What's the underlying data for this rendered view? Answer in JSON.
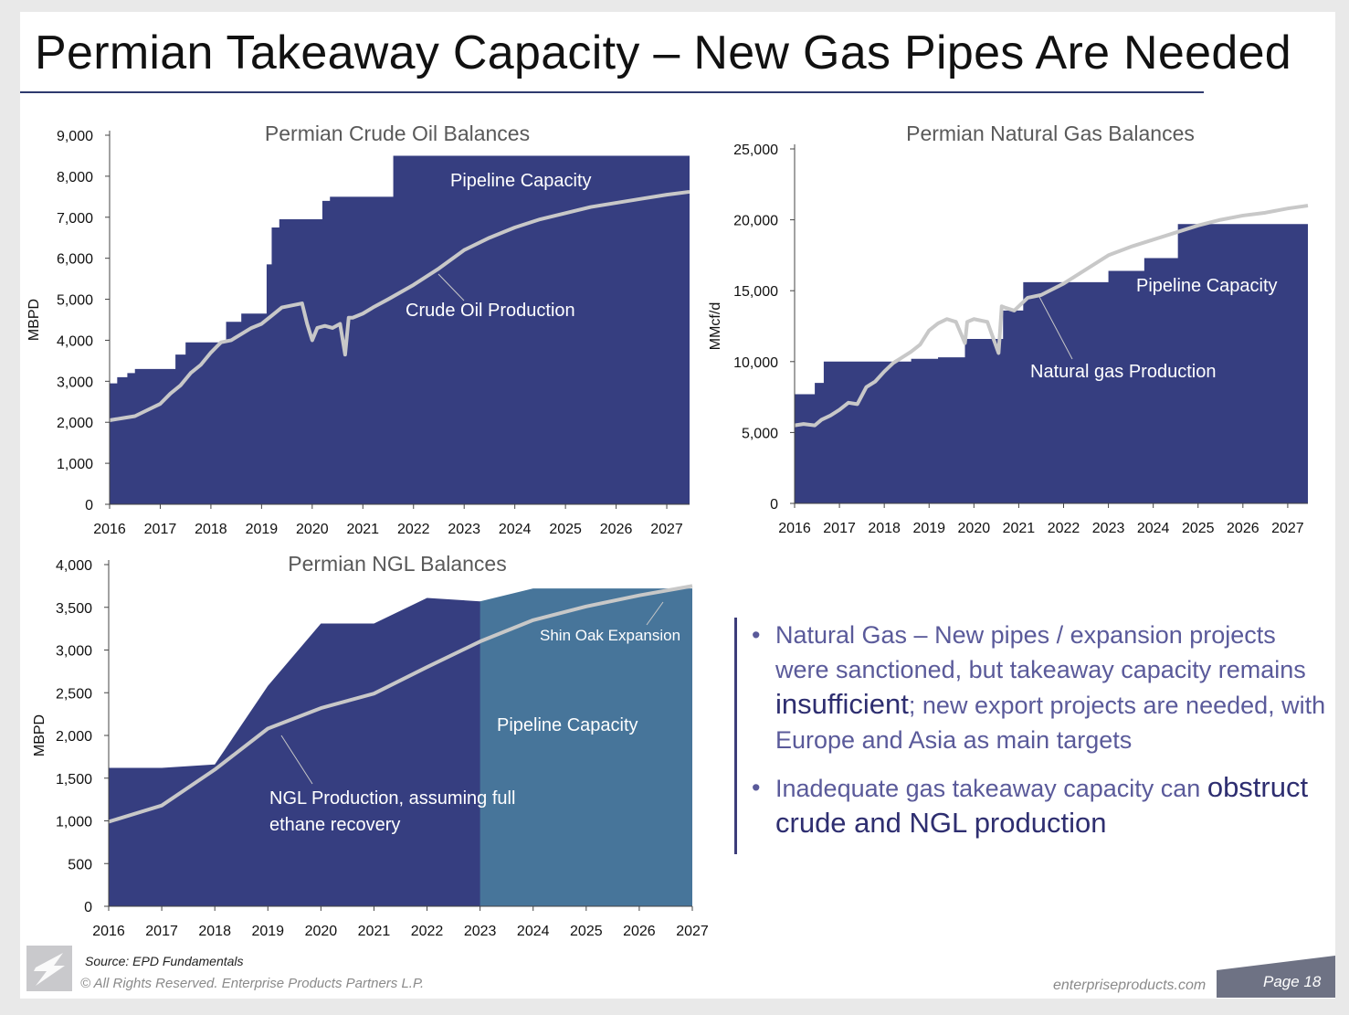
{
  "slide": {
    "title": "Permian Takeaway Capacity – New Gas Pipes Are Needed",
    "source": "Source:  EPD Fundamentals",
    "copyright": "© All Rights Reserved. Enterprise Products Partners L.P.",
    "site": "enterpriseproducts.com",
    "page": "Page 18"
  },
  "bullets": [
    {
      "before": "Natural Gas – New pipes / expansion projects were sanctioned, but takeaway capacity remains ",
      "bold": "insufficient",
      "after": "; new export projects are needed, with Europe and Asia as main targets"
    },
    {
      "before": "Inadequate gas takeaway capacity can ",
      "bold": "obstruct crude and NGL production",
      "after": ""
    }
  ],
  "colors": {
    "capacity": "#363e80",
    "expansion": "#47759a",
    "production": "#c8c8c8",
    "bullet_text": "#5a5a9a"
  },
  "chart_data": [
    {
      "type": "area",
      "title": "Permian Crude Oil Balances",
      "ylabel": "MBPD",
      "ylim": [
        0,
        9000
      ],
      "yticks": [
        0,
        1000,
        2000,
        3000,
        4000,
        5000,
        6000,
        7000,
        8000,
        9000
      ],
      "xticks": [
        "2016",
        "2017",
        "2018",
        "2019",
        "2020",
        "2021",
        "2022",
        "2023",
        "2024",
        "2025",
        "2026",
        "2027"
      ],
      "xlim": [
        2016,
        2027.45
      ],
      "annotations": [
        "Pipeline Capacity",
        "Crude Oil Production"
      ],
      "series": [
        {
          "name": "Pipeline Capacity",
          "type": "step",
          "x": [
            2016,
            2016.15,
            2016.35,
            2016.5,
            2017.3,
            2017.5,
            2018.3,
            2018.6,
            2019.1,
            2019.2,
            2019.35,
            2019.55,
            2020.2,
            2020.35,
            2020.5,
            2021.6,
            2021.85,
            2027.45
          ],
          "y": [
            2950,
            3100,
            3200,
            3300,
            3650,
            3950,
            4450,
            4650,
            5850,
            6750,
            6950,
            6950,
            7400,
            7500,
            7500,
            8500,
            8500,
            8500
          ]
        },
        {
          "name": "Crude Oil Production",
          "type": "line",
          "x": [
            2016,
            2016.25,
            2016.5,
            2016.75,
            2017,
            2017.2,
            2017.4,
            2017.6,
            2017.8,
            2018,
            2018.2,
            2018.4,
            2018.6,
            2018.8,
            2019,
            2019.2,
            2019.4,
            2019.6,
            2019.8,
            2019.9,
            2020,
            2020.1,
            2020.25,
            2020.4,
            2020.55,
            2020.65,
            2020.72,
            2020.8,
            2021,
            2021.2,
            2021.5,
            2022,
            2022.5,
            2023,
            2023.5,
            2024,
            2024.5,
            2025,
            2025.5,
            2026,
            2026.5,
            2027,
            2027.45
          ],
          "y": [
            2050,
            2100,
            2150,
            2300,
            2450,
            2700,
            2900,
            3200,
            3400,
            3700,
            3950,
            4000,
            4150,
            4300,
            4400,
            4600,
            4800,
            4850,
            4900,
            4400,
            4000,
            4300,
            4350,
            4300,
            4400,
            3650,
            4550,
            4550,
            4650,
            4800,
            5000,
            5350,
            5750,
            6200,
            6500,
            6750,
            6950,
            7100,
            7250,
            7350,
            7450,
            7550,
            7620
          ]
        }
      ]
    },
    {
      "type": "area",
      "title": "Permian Natural Gas Balances",
      "ylabel": "MMcf/d",
      "ylim": [
        0,
        25000
      ],
      "yticks": [
        0,
        5000,
        10000,
        15000,
        20000,
        25000
      ],
      "xticks": [
        "2016",
        "2017",
        "2018",
        "2019",
        "2020",
        "2021",
        "2022",
        "2023",
        "2024",
        "2025",
        "2026",
        "2027"
      ],
      "xlim": [
        2016,
        2027.45
      ],
      "annotations": [
        "Pipeline Capacity",
        "Natural gas Production"
      ],
      "series": [
        {
          "name": "Pipeline Capacity",
          "type": "step",
          "x": [
            2016,
            2016.45,
            2016.55,
            2016.65,
            2018.6,
            2019.2,
            2019.8,
            2020.5,
            2020.65,
            2021.1,
            2022.0,
            2022.15,
            2023.0,
            2023.2,
            2023.8,
            2024.2,
            2024.55,
            2027.45
          ],
          "y": [
            7700,
            8500,
            8500,
            10000,
            10200,
            10300,
            11600,
            11600,
            13600,
            15600,
            15600,
            15600,
            16400,
            16400,
            17300,
            17300,
            19700,
            19700
          ]
        },
        {
          "name": "Natural gas Production",
          "type": "line",
          "x": [
            2016,
            2016.2,
            2016.45,
            2016.6,
            2016.8,
            2017,
            2017.2,
            2017.4,
            2017.6,
            2017.8,
            2018,
            2018.2,
            2018.4,
            2018.6,
            2018.8,
            2019,
            2019.2,
            2019.4,
            2019.6,
            2019.8,
            2019.85,
            2020.0,
            2020.3,
            2020.55,
            2020.62,
            2020.7,
            2020.9,
            2021.2,
            2021.5,
            2022,
            2022.5,
            2023,
            2023.5,
            2024,
            2024.5,
            2025,
            2025.5,
            2026,
            2026.5,
            2027,
            2027.45
          ],
          "y": [
            5500,
            5600,
            5500,
            5900,
            6200,
            6600,
            7100,
            7000,
            8200,
            8600,
            9300,
            9900,
            10300,
            10700,
            11200,
            12200,
            12700,
            13000,
            12800,
            11300,
            12800,
            13000,
            12800,
            10600,
            13900,
            13800,
            13600,
            14500,
            14700,
            15500,
            16500,
            17500,
            18100,
            18600,
            19100,
            19600,
            20000,
            20300,
            20500,
            20800,
            21000
          ]
        }
      ]
    },
    {
      "type": "area",
      "title": "Permian NGL Balances",
      "ylabel": "MBPD",
      "ylim": [
        0,
        4000
      ],
      "yticks": [
        0,
        500,
        1000,
        1500,
        2000,
        2500,
        3000,
        3500,
        4000
      ],
      "xticks": [
        "2016",
        "2017",
        "2018",
        "2019",
        "2020",
        "2021",
        "2022",
        "2023",
        "2024",
        "2025",
        "2026",
        "2027"
      ],
      "xlim": [
        2016,
        2027
      ],
      "annotations": [
        "Pipeline Capacity",
        "NGL Production, assuming full ethane recovery",
        "Shin Oak Expansion"
      ],
      "series": [
        {
          "name": "Pipeline Capacity",
          "type": "area",
          "x": [
            2016,
            2017,
            2018,
            2019,
            2020,
            2021,
            2022,
            2023,
            2024,
            2025,
            2026,
            2027
          ],
          "y": [
            1620,
            1620,
            1660,
            2580,
            3310,
            3310,
            3610,
            3570,
            3450,
            3450,
            3450,
            3450
          ]
        },
        {
          "name": "Shin Oak Expansion",
          "type": "area",
          "x": [
            2023,
            2024,
            2025,
            2026,
            2027
          ],
          "y": [
            3570,
            3720,
            3720,
            3720,
            3720
          ]
        },
        {
          "name": "NGL Production, assuming full ethane recovery",
          "type": "line",
          "x": [
            2016,
            2017,
            2018,
            2019,
            2020,
            2021,
            2022,
            2023,
            2024,
            2025,
            2026,
            2027
          ],
          "y": [
            990,
            1180,
            1600,
            2080,
            2320,
            2490,
            2800,
            3100,
            3350,
            3510,
            3640,
            3750
          ]
        }
      ]
    }
  ]
}
